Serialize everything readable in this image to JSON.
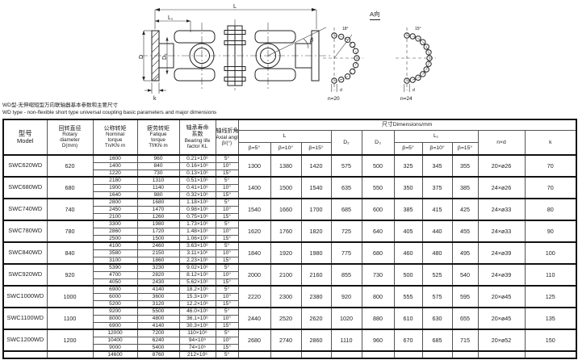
{
  "page": {
    "title_cn": "WD型-无伸缩短型万向联轴器基本参数和主要尺寸",
    "title_en": "WD type - non-flexible short type universal coupling basic parameters and major dimensions"
  },
  "drawing": {
    "view_label": "A向",
    "dim_L": "L",
    "dim_L1": "L₁",
    "dim_D": "D",
    "dim_D2": "D₂",
    "dim_k": "k",
    "dim_beta": "β",
    "bolt1": {
      "n": "n=20",
      "angle": "18°",
      "d": "d"
    },
    "bolt2": {
      "n": "n=24",
      "angle": "15°",
      "d": "d"
    }
  },
  "table": {
    "headers": {
      "model_lines": [
        "型号",
        "Model"
      ],
      "rotary_lines": [
        "回转直径",
        "Rotary",
        "diameter",
        "D(mm)"
      ],
      "nominal_lines": [
        "公称转矩",
        "Nominal",
        "torque",
        "Tn/KN·m"
      ],
      "fatigue_lines": [
        "疲劳转矩",
        "Fatique",
        "torque",
        "Tf/KN·m"
      ],
      "bearing_lines": [
        "轴承寿命",
        "系数",
        "Bearing life",
        "factor KL"
      ],
      "axial_lines": [
        "轴线折角",
        "Axial angle",
        "β/(°)"
      ],
      "dims": "尺寸Dimensions/mm",
      "L": "L",
      "L1": "L₁",
      "D2": "D₂",
      "D3": "D₃",
      "nxd": "n×d",
      "k": "k",
      "beta5": "β=5°",
      "beta10": "β=10°",
      "beta15": "β=15°"
    },
    "rows": [
      {
        "model": "SWC620WD",
        "diameter": "620",
        "sub": [
          {
            "tn": "1600",
            "tf": "960",
            "kl": "0.21×10⁶",
            "beta": "5°"
          },
          {
            "tn": "1400",
            "tf": "840",
            "kl": "0.16×10⁶",
            "beta": "10°"
          },
          {
            "tn": "1220",
            "tf": "730",
            "kl": "0.13×10⁶",
            "beta": "15°"
          }
        ],
        "L": [
          "1300",
          "1380",
          "1420"
        ],
        "D2": "575",
        "D3": "500",
        "L1": [
          "325",
          "345",
          "355"
        ],
        "nxd": "20×ø26",
        "k": "70"
      },
      {
        "model": "SWC680WD",
        "diameter": "680",
        "sub": [
          {
            "tn": "2180",
            "tf": "1310",
            "kl": "0.51×10⁶",
            "beta": "5°"
          },
          {
            "tn": "1900",
            "tf": "1140",
            "kl": "0.41×10⁶",
            "beta": "10°"
          },
          {
            "tn": "1640",
            "tf": "980",
            "kl": "0.32×10⁶",
            "beta": "15°"
          }
        ],
        "L": [
          "1400",
          "1500",
          "1540"
        ],
        "D2": "635",
        "D3": "550",
        "L1": [
          "350",
          "375",
          "385"
        ],
        "nxd": "24×ø26",
        "k": "70"
      },
      {
        "model": "SWC740WD",
        "diameter": "740",
        "sub": [
          {
            "tn": "2800",
            "tf": "1680",
            "kl": "1.18×10⁶",
            "beta": "5°"
          },
          {
            "tn": "2450",
            "tf": "1470",
            "kl": "0.98×10⁶",
            "beta": "10°"
          },
          {
            "tn": "2100",
            "tf": "1260",
            "kl": "0.75×10⁶",
            "beta": "15°"
          }
        ],
        "L": [
          "1540",
          "1660",
          "1700"
        ],
        "D2": "685",
        "D3": "600",
        "L1": [
          "385",
          "415",
          "425"
        ],
        "nxd": "24×ø33",
        "k": "80"
      },
      {
        "model": "SWC780WD",
        "diameter": "780",
        "sub": [
          {
            "tn": "3300",
            "tf": "1980",
            "kl": "1.73×10⁶",
            "beta": "5°"
          },
          {
            "tn": "2860",
            "tf": "1720",
            "kl": "1.48×10⁶",
            "beta": "10°"
          },
          {
            "tn": "2500",
            "tf": "1500",
            "kl": "1.06×10⁶",
            "beta": "15°"
          }
        ],
        "L": [
          "1620",
          "1760",
          "1820"
        ],
        "D2": "725",
        "D3": "640",
        "L1": [
          "405",
          "440",
          "455"
        ],
        "nxd": "24×ø33",
        "k": "90"
      },
      {
        "model": "SWC840WD",
        "diameter": "840",
        "sub": [
          {
            "tn": "4100",
            "tf": "2460",
            "kl": "3.63×10⁶",
            "beta": "5°"
          },
          {
            "tn": "3580",
            "tf": "2150",
            "kl": "3.11×10⁶",
            "beta": "10°"
          },
          {
            "tn": "3100",
            "tf": "1860",
            "kl": "2.23×10⁶",
            "beta": "15°"
          }
        ],
        "L": [
          "1840",
          "1920",
          "1980"
        ],
        "D2": "775",
        "D3": "680",
        "L1": [
          "460",
          "480",
          "495"
        ],
        "nxd": "24×ø39",
        "k": "100"
      },
      {
        "model": "SWC920WD",
        "diameter": "920",
        "sub": [
          {
            "tn": "5390",
            "tf": "3230",
            "kl": "9.02×10⁶",
            "beta": "5°"
          },
          {
            "tn": "4700",
            "tf": "2820",
            "kl": "8.12×10⁶",
            "beta": "10°"
          },
          {
            "tn": "4050",
            "tf": "2430",
            "kl": "5.62×10⁶",
            "beta": "15°"
          }
        ],
        "L": [
          "2000",
          "2100",
          "2160"
        ],
        "D2": "855",
        "D3": "730",
        "L1": [
          "500",
          "525",
          "540"
        ],
        "nxd": "24×ø39",
        "k": "110"
      },
      {
        "model": "SWC1000WD",
        "diameter": "1000",
        "sub": [
          {
            "tn": "6900",
            "tf": "4140",
            "kl": "18.2×10⁶",
            "beta": "5°"
          },
          {
            "tn": "6000",
            "tf": "3600",
            "kl": "15.3×10⁶",
            "beta": "10°"
          },
          {
            "tn": "5200",
            "tf": "3120",
            "kl": "12.2×10⁶",
            "beta": "15°"
          }
        ],
        "L": [
          "2220",
          "2300",
          "2380"
        ],
        "D2": "920",
        "D3": "800",
        "L1": [
          "555",
          "575",
          "595"
        ],
        "nxd": "20×ø45",
        "k": "125"
      },
      {
        "model": "SWC1100WD",
        "diameter": "1100",
        "sub": [
          {
            "tn": "9200",
            "tf": "5500",
            "kl": "46.0×10⁶",
            "beta": "5°"
          },
          {
            "tn": "8000",
            "tf": "4800",
            "kl": "36.1×10⁶",
            "beta": "10°"
          },
          {
            "tn": "6900",
            "tf": "4140",
            "kl": "30.3×10⁶",
            "beta": "15°"
          }
        ],
        "L": [
          "2440",
          "2520",
          "2620"
        ],
        "D2": "1020",
        "D3": "880",
        "L1": [
          "610",
          "630",
          "655"
        ],
        "nxd": "20×ø45",
        "k": "135"
      },
      {
        "model": "SWC1200WD",
        "diameter": "1200",
        "sub": [
          {
            "tn": "12000",
            "tf": "7200",
            "kl": "110×10⁶",
            "beta": "5°"
          },
          {
            "tn": "10400",
            "tf": "6240",
            "kl": "94×10⁶",
            "beta": "10°"
          },
          {
            "tn": "9000",
            "tf": "5400",
            "kl": "74×10⁶",
            "beta": "15°"
          }
        ],
        "L": [
          "2680",
          "2740",
          "2860"
        ],
        "D2": "1110",
        "D3": "960",
        "L1": [
          "670",
          "685",
          "715"
        ],
        "nxd": "20×ø52",
        "k": "150"
      }
    ],
    "partial_row": {
      "tn": "14600",
      "tf": "8760",
      "kl": "212×10⁶",
      "beta": "5°"
    }
  }
}
